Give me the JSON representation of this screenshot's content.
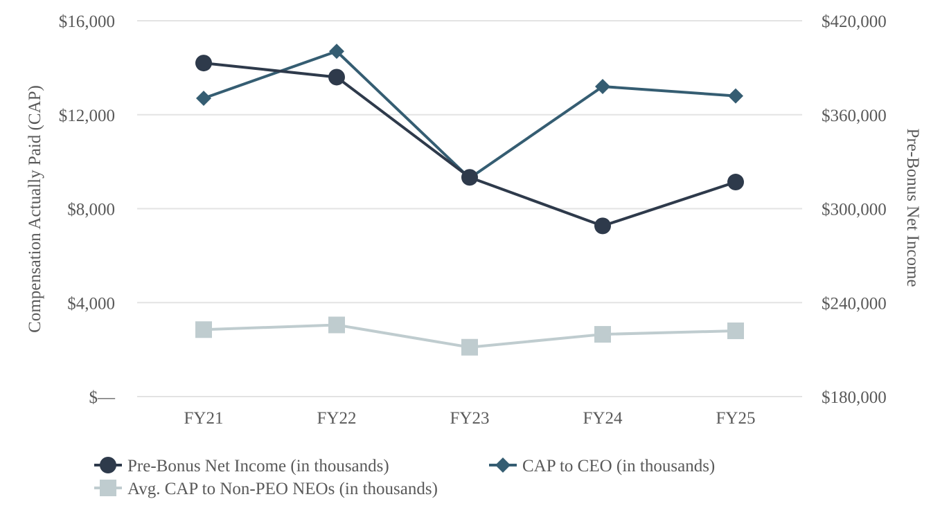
{
  "chart_data": {
    "type": "line",
    "categories": [
      "FY21",
      "FY22",
      "FY23",
      "FY24",
      "FY25"
    ],
    "y_left": {
      "label": "Compensation Actually Paid (CAP)",
      "range": [
        0,
        16000
      ],
      "ticks": [
        0,
        4000,
        8000,
        12000,
        16000
      ],
      "tick_labels": [
        "$—",
        "$4,000",
        "$8,000",
        "$12,000",
        "$16,000"
      ]
    },
    "y_right": {
      "label": "Pre-Bonus Net Income",
      "range": [
        180000,
        420000
      ],
      "ticks": [
        180000,
        240000,
        300000,
        360000,
        420000
      ],
      "tick_labels": [
        "$180,000",
        "$240,000",
        "$300,000",
        "$360,000",
        "$420,000"
      ]
    },
    "grid": true,
    "legend_position": "bottom-left",
    "series": [
      {
        "name": "Pre-Bonus Net Income (in thousands)",
        "axis": "right",
        "values": [
          393000,
          384000,
          320000,
          289000,
          317000
        ],
        "marker": "circle",
        "color": "#2e3a4b"
      },
      {
        "name": "CAP to CEO (in thousands)",
        "axis": "left",
        "values": [
          12700,
          14700,
          9300,
          13200,
          12800
        ],
        "marker": "diamond",
        "color": "#355d72"
      },
      {
        "name": "Avg. CAP to Non-PEO NEOs (in thousands)",
        "axis": "left",
        "values": [
          2850,
          3050,
          2100,
          2650,
          2800
        ],
        "marker": "square",
        "color": "#bfcccf"
      }
    ]
  }
}
